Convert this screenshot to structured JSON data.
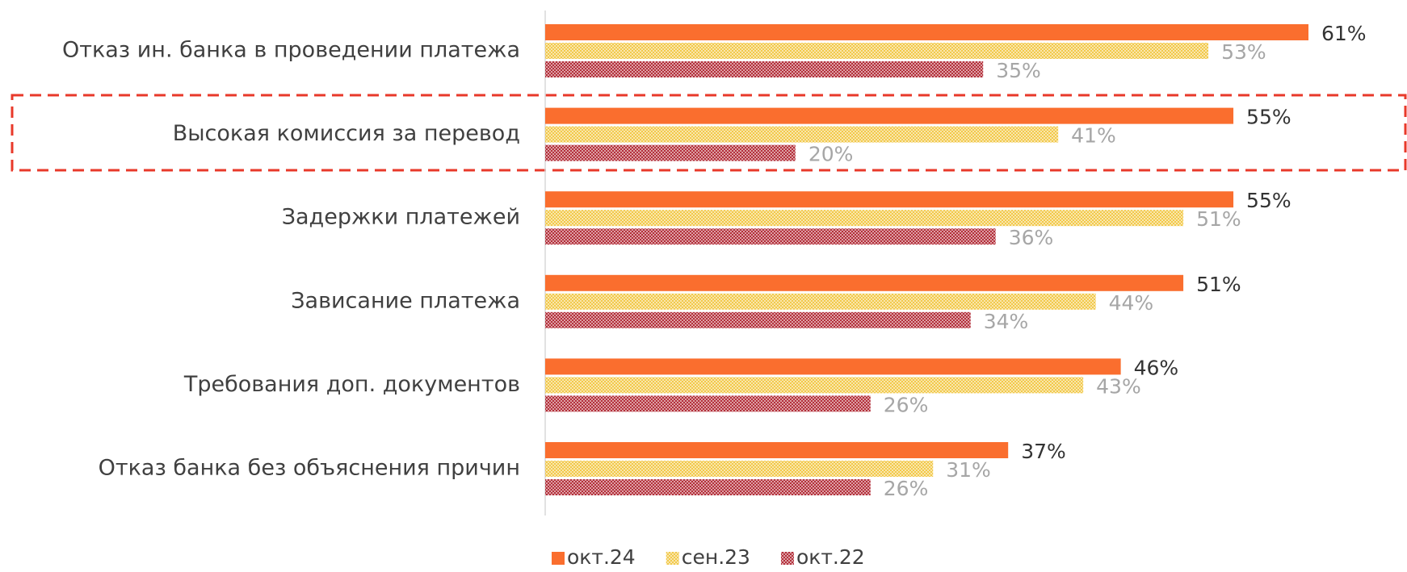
{
  "chart_data": {
    "type": "hbar",
    "categories": [
      "Отказ ин. банка в проведении платежа",
      "Высокая комиссия за перевод",
      "Задержки платежей",
      "Зависание платежа",
      "Требования доп. документов",
      "Отказ банка без объяснения причин"
    ],
    "series": [
      {
        "name": "окт.24",
        "color": "#fa6e2e",
        "fill": "solid",
        "label_color": "#333333",
        "values": [
          61,
          55,
          55,
          51,
          46,
          37
        ],
        "value_labels": [
          "61%",
          "55%",
          "55%",
          "51%",
          "46%",
          "37%"
        ]
      },
      {
        "name": "сен.23",
        "color": "#f2c94a",
        "fill": "checker",
        "label_color": "#a6a6a6",
        "values": [
          53,
          41,
          51,
          44,
          43,
          31
        ],
        "value_labels": [
          "53%",
          "41%",
          "51%",
          "44%",
          "43%",
          "31%"
        ]
      },
      {
        "name": "окт.22",
        "color": "#b32f3a",
        "fill": "checker",
        "label_color": "#a6a6a6",
        "values": [
          35,
          20,
          36,
          34,
          26,
          26
        ],
        "value_labels": [
          "35%",
          "20%",
          "36%",
          "34%",
          "26%",
          "26%"
        ]
      }
    ],
    "legend": "bottom"
  }
}
